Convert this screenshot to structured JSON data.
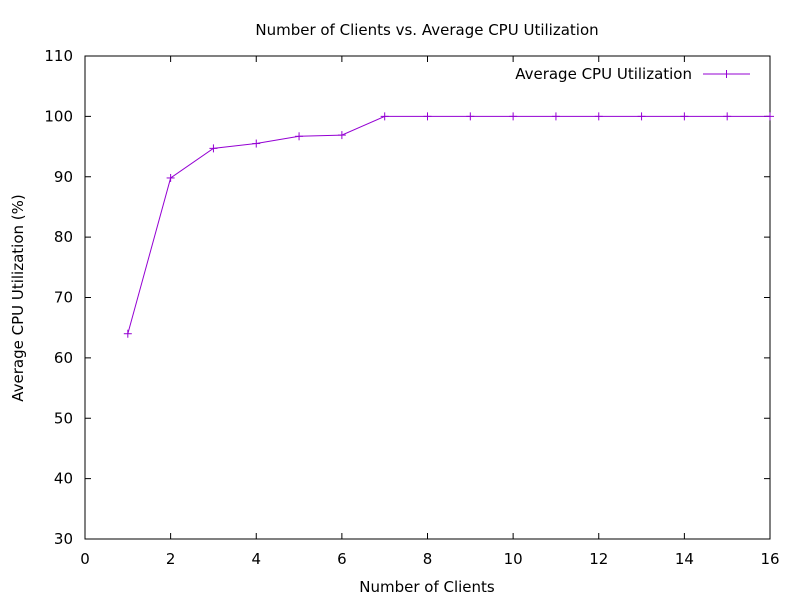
{
  "chart_data": {
    "type": "line",
    "title": "Number of Clients vs. Average CPU Utilization",
    "xlabel": "Number of Clients",
    "ylabel": "Average CPU Utilization (%)",
    "xlim": [
      0,
      16
    ],
    "ylim": [
      30,
      110
    ],
    "xticks": [
      0,
      2,
      4,
      6,
      8,
      10,
      12,
      14,
      16
    ],
    "yticks": [
      30,
      40,
      50,
      60,
      70,
      80,
      90,
      100,
      110
    ],
    "grid": false,
    "legend_position": "top-right",
    "series": [
      {
        "name": "Average CPU Utilization",
        "color": "#9400d3",
        "marker": "plus",
        "x": [
          1,
          2,
          3,
          4,
          5,
          6,
          7,
          8,
          9,
          10,
          11,
          12,
          13,
          14,
          15,
          16
        ],
        "y": [
          64,
          89.8,
          94.7,
          95.5,
          96.7,
          96.9,
          100,
          100,
          100,
          100,
          100,
          100,
          100,
          100,
          100,
          100
        ]
      }
    ]
  }
}
